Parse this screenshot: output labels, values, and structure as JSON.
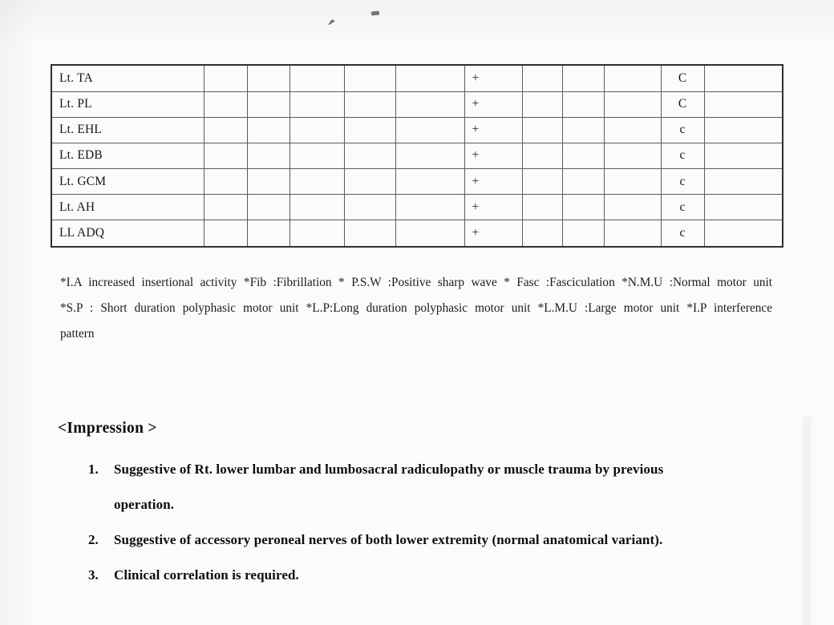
{
  "page": {
    "background": "#fbfbfa",
    "ink": "#1a1a1a"
  },
  "emg_table": {
    "columns": 12,
    "spontaneous_symbol": "+",
    "rows": [
      {
        "muscle": "Lt. TA",
        "cells": [
          "",
          "",
          "",
          "",
          "",
          "+",
          "",
          "",
          "",
          "C",
          ""
        ]
      },
      {
        "muscle": "Lt. PL",
        "cells": [
          "",
          "",
          "",
          "",
          "",
          "+",
          "",
          "",
          "",
          "C",
          ""
        ]
      },
      {
        "muscle": "Lt. EHL",
        "cells": [
          "",
          "",
          "",
          "",
          "",
          "+",
          "",
          "",
          "",
          "c",
          ""
        ]
      },
      {
        "muscle": "Lt. EDB",
        "cells": [
          "",
          "",
          "",
          "",
          "",
          "+",
          "",
          "",
          "",
          "c",
          ""
        ]
      },
      {
        "muscle": "Lt. GCM",
        "cells": [
          "",
          "",
          "",
          "",
          "",
          "+",
          "",
          "",
          "",
          "c",
          ""
        ]
      },
      {
        "muscle": "Lt. AH",
        "cells": [
          "",
          "",
          "",
          "",
          "",
          "+",
          "",
          "",
          "",
          "c",
          ""
        ]
      },
      {
        "muscle": "LL ADQ",
        "cells": [
          "",
          "",
          "",
          "",
          "",
          "+",
          "",
          "",
          "",
          "c",
          ""
        ]
      }
    ]
  },
  "footnote": {
    "line1": "*I.A increased insertional activity *Fib :Fibrillation * P.S.W :Positive sharp wave * Fasc :Fasciculation *N.M.U :Normal motor unit",
    "line2": "*S.P : Short duration polyphasic motor unit *L.P:Long duration polyphasic motor unit *L.M.U :Large motor unit *I.P interference",
    "line3": "pattern"
  },
  "impression": {
    "title": "<Impression >",
    "items": [
      {
        "num": "1.",
        "text": "Suggestive of Rt. lower lumbar and lumbosacral radiculopathy or muscle trauma by previous\noperation."
      },
      {
        "num": "2.",
        "text": "Suggestive of accessory peroneal nerves of both lower extremity (normal anatomical variant)."
      },
      {
        "num": "3.",
        "text": "Clinical correlation is required."
      }
    ]
  }
}
